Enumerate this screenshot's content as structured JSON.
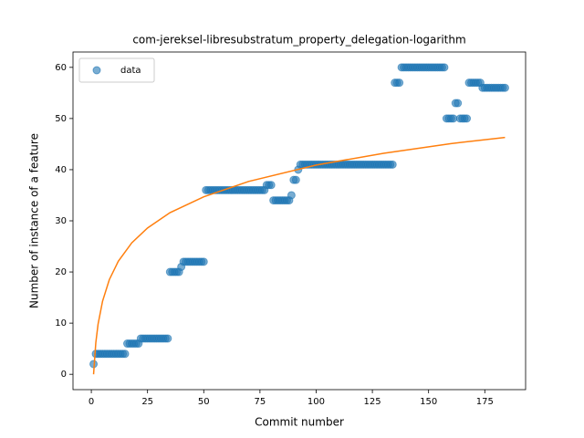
{
  "chart_data": {
    "type": "scatter",
    "title": "com-jereksel-libresubstratum_property_delegation-logarithm",
    "xlabel": "Commit number",
    "ylabel": "Number of instance of a feature",
    "xlim": [
      -8.15,
      193.15
    ],
    "ylim": [
      -3,
      63
    ],
    "xticks": [
      0,
      25,
      50,
      75,
      100,
      125,
      150,
      175
    ],
    "yticks": [
      0,
      10,
      20,
      30,
      40,
      50,
      60
    ],
    "legend": "upper left",
    "series": [
      {
        "name": "data",
        "type": "scatter",
        "color": "#1f77b4",
        "alpha": 0.6,
        "x": [
          1,
          2,
          3,
          4,
          5,
          6,
          7,
          8,
          9,
          10,
          11,
          12,
          13,
          14,
          15,
          16,
          17,
          18,
          19,
          20,
          21,
          22,
          23,
          24,
          25,
          26,
          27,
          28,
          29,
          30,
          31,
          32,
          33,
          34,
          35,
          36,
          37,
          38,
          39,
          40,
          41,
          42,
          43,
          44,
          45,
          46,
          47,
          48,
          49,
          50,
          51,
          52,
          53,
          54,
          55,
          56,
          57,
          58,
          59,
          60,
          61,
          62,
          63,
          64,
          65,
          66,
          67,
          68,
          69,
          70,
          71,
          72,
          73,
          74,
          75,
          76,
          77,
          78,
          79,
          80,
          81,
          82,
          83,
          84,
          85,
          86,
          87,
          88,
          89,
          90,
          91,
          92,
          93,
          94,
          95,
          96,
          97,
          98,
          99,
          100,
          101,
          102,
          103,
          104,
          105,
          106,
          107,
          108,
          109,
          110,
          111,
          112,
          113,
          114,
          115,
          116,
          117,
          118,
          119,
          120,
          121,
          122,
          123,
          124,
          125,
          126,
          127,
          128,
          129,
          130,
          131,
          132,
          133,
          134,
          135,
          136,
          137,
          138,
          139,
          140,
          141,
          142,
          143,
          144,
          145,
          146,
          147,
          148,
          149,
          150,
          151,
          152,
          153,
          154,
          155,
          156,
          157,
          158,
          159,
          160,
          161,
          162,
          163,
          164,
          165,
          166,
          167,
          168,
          169,
          170,
          171,
          172,
          173,
          174,
          175,
          176,
          177,
          178,
          179,
          180,
          181,
          182,
          183,
          184
        ],
        "values": [
          2,
          4,
          4,
          4,
          4,
          4,
          4,
          4,
          4,
          4,
          4,
          4,
          4,
          4,
          4,
          6,
          6,
          6,
          6,
          6,
          6,
          7,
          7,
          7,
          7,
          7,
          7,
          7,
          7,
          7,
          7,
          7,
          7,
          7,
          20,
          20,
          20,
          20,
          20,
          21,
          22,
          22,
          22,
          22,
          22,
          22,
          22,
          22,
          22,
          22,
          36,
          36,
          36,
          36,
          36,
          36,
          36,
          36,
          36,
          36,
          36,
          36,
          36,
          36,
          36,
          36,
          36,
          36,
          36,
          36,
          36,
          36,
          36,
          36,
          36,
          36,
          36,
          37,
          37,
          37,
          34,
          34,
          34,
          34,
          34,
          34,
          34,
          34,
          35,
          38,
          38,
          40,
          41,
          41,
          41,
          41,
          41,
          41,
          41,
          41,
          41,
          41,
          41,
          41,
          41,
          41,
          41,
          41,
          41,
          41,
          41,
          41,
          41,
          41,
          41,
          41,
          41,
          41,
          41,
          41,
          41,
          41,
          41,
          41,
          41,
          41,
          41,
          41,
          41,
          41,
          41,
          41,
          41,
          41,
          57,
          57,
          57,
          60,
          60,
          60,
          60,
          60,
          60,
          60,
          60,
          60,
          60,
          60,
          60,
          60,
          60,
          60,
          60,
          60,
          60,
          60,
          60,
          50,
          50,
          50,
          50,
          53,
          53,
          50,
          50,
          50,
          50,
          57,
          57,
          57,
          57,
          57,
          57,
          56,
          56,
          56,
          56,
          56,
          56,
          56,
          56,
          56,
          56,
          56
        ]
      },
      {
        "type": "line",
        "color": "#ff7f0e",
        "x": [
          1,
          2,
          3,
          5,
          8,
          12,
          18,
          25,
          35,
          50,
          70,
          100,
          130,
          160,
          184
        ],
        "values": [
          0,
          6.2,
          9.8,
          14.3,
          18.5,
          22.1,
          25.7,
          28.6,
          31.6,
          34.7,
          37.7,
          40.9,
          43.2,
          45.1,
          46.3
        ]
      }
    ]
  }
}
